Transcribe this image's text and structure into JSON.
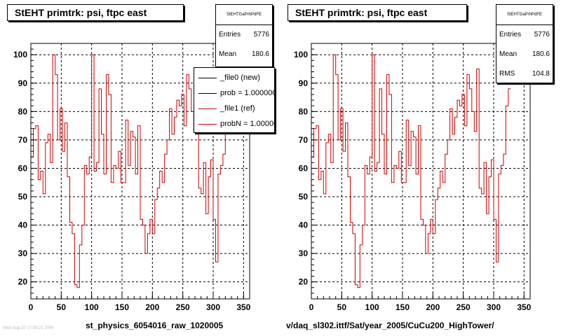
{
  "panels": [
    {
      "title": "StEHT primtrk: psi, ftpc east",
      "stats": {
        "name": "StEHTGaPrhPdFE",
        "rows": [
          {
            "label": "Entries",
            "value": "5776"
          },
          {
            "label": "Mean",
            "value": "180.6"
          }
        ]
      },
      "legend": [
        {
          "label": "_file0 (new)",
          "color": "#000000"
        },
        {
          "label": "prob = 1.000000",
          "color": "#000000"
        },
        {
          "label": "_file1 (ref)",
          "color": "#cc0000"
        },
        {
          "label": "probN = 1.000000",
          "color": "#cc0000"
        }
      ],
      "caption": "st_physics_6054016_raw_1020005"
    },
    {
      "title": "StEHT primtrk: psi, ftpc east",
      "stats": {
        "name": "StEHTGaPrhPdFE",
        "rows": [
          {
            "label": "Entries",
            "value": "5776"
          },
          {
            "label": "Mean",
            "value": "180.6"
          },
          {
            "label": "RMS",
            "value": "104.8"
          }
        ]
      },
      "legend": [],
      "caption": "v/daq_sl302.ittf/Sat/year_2005/CuCu200_HighTower/"
    }
  ],
  "status_text": "Wed Aug 10 17:05:21 2005",
  "chart_data": [
    {
      "type": "line",
      "title": "StEHT primtrk: psi, ftpc east",
      "xlim": [
        0,
        360
      ],
      "ylim": [
        14,
        104
      ],
      "xticks": [
        0,
        50,
        100,
        150,
        200,
        250,
        300,
        350
      ],
      "yticks": [
        20,
        30,
        40,
        50,
        60,
        70,
        80,
        90,
        100
      ],
      "grid": true,
      "series": [
        {
          "name": "_file1 (ref)",
          "color": "#cc0000",
          "bin_width": 4,
          "x_start": 0,
          "values": [
            64,
            74,
            75,
            56,
            59,
            51,
            69,
            72,
            62,
            100,
            93,
            70,
            81,
            66,
            76,
            57,
            41,
            37,
            19,
            18,
            33,
            40,
            61,
            58,
            64,
            100,
            59,
            62,
            88,
            72,
            58,
            93,
            86,
            55,
            61,
            60,
            66,
            55,
            55,
            77,
            61,
            73,
            71,
            58,
            75,
            42,
            40,
            30,
            37,
            42,
            37,
            49,
            53,
            59,
            55,
            65,
            70,
            81,
            72,
            78,
            84,
            82,
            86,
            75,
            93,
            88,
            80,
            73,
            95,
            53,
            51,
            62,
            44,
            57,
            63,
            42,
            27,
            58,
            61,
            65,
            82,
            88
          ]
        }
      ]
    },
    {
      "type": "line",
      "title": "StEHT primtrk: psi, ftpc east",
      "xlim": [
        0,
        360
      ],
      "ylim": [
        14,
        104
      ],
      "xticks": [
        0,
        50,
        100,
        150,
        200,
        250,
        300,
        350
      ],
      "yticks": [
        20,
        30,
        40,
        50,
        60,
        70,
        80,
        90,
        100
      ],
      "grid": true,
      "series": [
        {
          "name": "",
          "color": "#cc0000",
          "bin_width": 4,
          "x_start": 0,
          "values": [
            64,
            74,
            75,
            56,
            59,
            51,
            69,
            72,
            62,
            100,
            93,
            70,
            81,
            66,
            76,
            57,
            41,
            37,
            19,
            18,
            33,
            40,
            61,
            58,
            64,
            100,
            59,
            62,
            88,
            72,
            58,
            93,
            86,
            55,
            61,
            60,
            66,
            55,
            55,
            77,
            61,
            73,
            71,
            58,
            75,
            42,
            40,
            30,
            37,
            42,
            37,
            49,
            53,
            59,
            55,
            65,
            70,
            81,
            72,
            78,
            84,
            82,
            86,
            75,
            93,
            88,
            80,
            73,
            95,
            53,
            51,
            62,
            44,
            57,
            63,
            42,
            27,
            58,
            61,
            65,
            82,
            88
          ]
        }
      ]
    }
  ]
}
